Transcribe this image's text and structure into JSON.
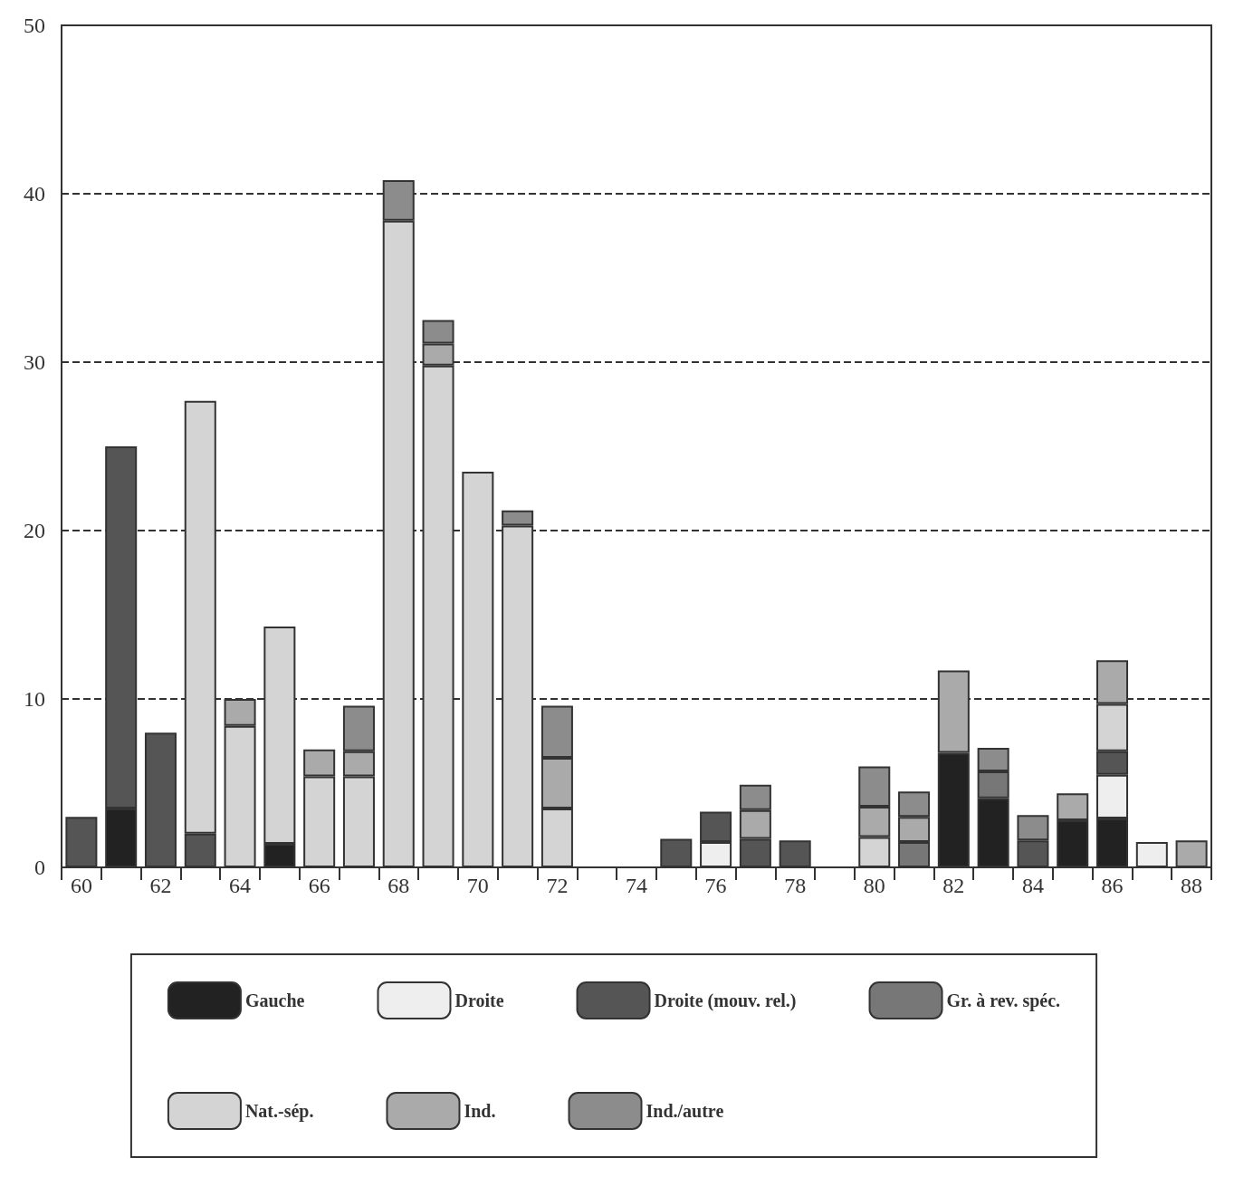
{
  "chart_data": {
    "type": "bar",
    "stacked": true,
    "categories": [
      "60",
      null,
      "62",
      null,
      "64",
      null,
      "66",
      null,
      "68",
      null,
      "70",
      null,
      "72",
      null,
      "74",
      null,
      "76",
      null,
      "78",
      null,
      "80",
      null,
      "82",
      null,
      "84",
      null,
      "86",
      null,
      "88"
    ],
    "series": [
      {
        "name": "Gauche",
        "color": "#222222",
        "values": [
          null,
          3.5,
          null,
          null,
          null,
          1.4,
          null,
          null,
          null,
          null,
          null,
          null,
          null,
          null,
          null,
          null,
          null,
          null,
          null,
          null,
          null,
          null,
          6.8,
          4.1,
          null,
          2.8,
          2.9,
          null,
          null
        ]
      },
      {
        "name": "Droite",
        "color": "#eeeeee",
        "values": [
          null,
          null,
          null,
          null,
          null,
          null,
          null,
          null,
          null,
          null,
          null,
          null,
          null,
          null,
          null,
          null,
          1.5,
          null,
          null,
          null,
          null,
          null,
          null,
          null,
          null,
          null,
          2.6,
          1.5,
          null
        ]
      },
      {
        "name": "Droite (mouv. rel.)",
        "color": "#555555",
        "values": [
          3,
          21.5,
          8,
          2,
          null,
          null,
          null,
          null,
          null,
          null,
          null,
          null,
          null,
          null,
          null,
          1.7,
          1.8,
          1.7,
          1.6,
          null,
          null,
          null,
          null,
          null,
          1.6,
          null,
          1.4,
          null,
          null
        ]
      },
      {
        "name": "Gr. à rev. spéc.",
        "color": "#777777",
        "values": [
          null,
          null,
          null,
          null,
          null,
          null,
          null,
          null,
          null,
          null,
          null,
          null,
          null,
          null,
          null,
          null,
          null,
          null,
          null,
          null,
          null,
          1.5,
          null,
          1.6,
          null,
          null,
          null,
          null,
          null
        ]
      },
      {
        "name": "Nat.-sép.",
        "color": "#d4d4d4",
        "values": [
          null,
          null,
          null,
          25.7,
          8.4,
          12.9,
          5.4,
          5.4,
          38.4,
          29.8,
          23.5,
          20.3,
          3.5,
          null,
          null,
          null,
          null,
          null,
          null,
          null,
          1.8,
          null,
          null,
          null,
          null,
          null,
          2.8,
          null,
          null
        ]
      },
      {
        "name": "Ind.",
        "color": "#aaaaaa",
        "values": [
          null,
          null,
          null,
          null,
          1.6,
          null,
          1.6,
          1.5,
          null,
          1.3,
          null,
          null,
          3.0,
          null,
          null,
          null,
          null,
          1.7,
          null,
          null,
          1.8,
          1.5,
          4.9,
          null,
          null,
          1.6,
          2.6,
          null,
          1.6
        ]
      },
      {
        "name": "Ind./autre",
        "color": "#8c8c8c",
        "values": [
          null,
          null,
          null,
          null,
          null,
          null,
          null,
          2.7,
          2.4,
          1.4,
          null,
          0.9,
          3.1,
          null,
          null,
          null,
          null,
          1.5,
          null,
          null,
          2.4,
          1.5,
          null,
          1.4,
          1.5,
          null,
          null,
          null,
          null
        ]
      }
    ],
    "ylim": [
      0,
      50
    ],
    "yticks": [
      0,
      10,
      20,
      30,
      40,
      50
    ],
    "grid": "y",
    "line_style": "dashed",
    "legend": "bottom"
  }
}
